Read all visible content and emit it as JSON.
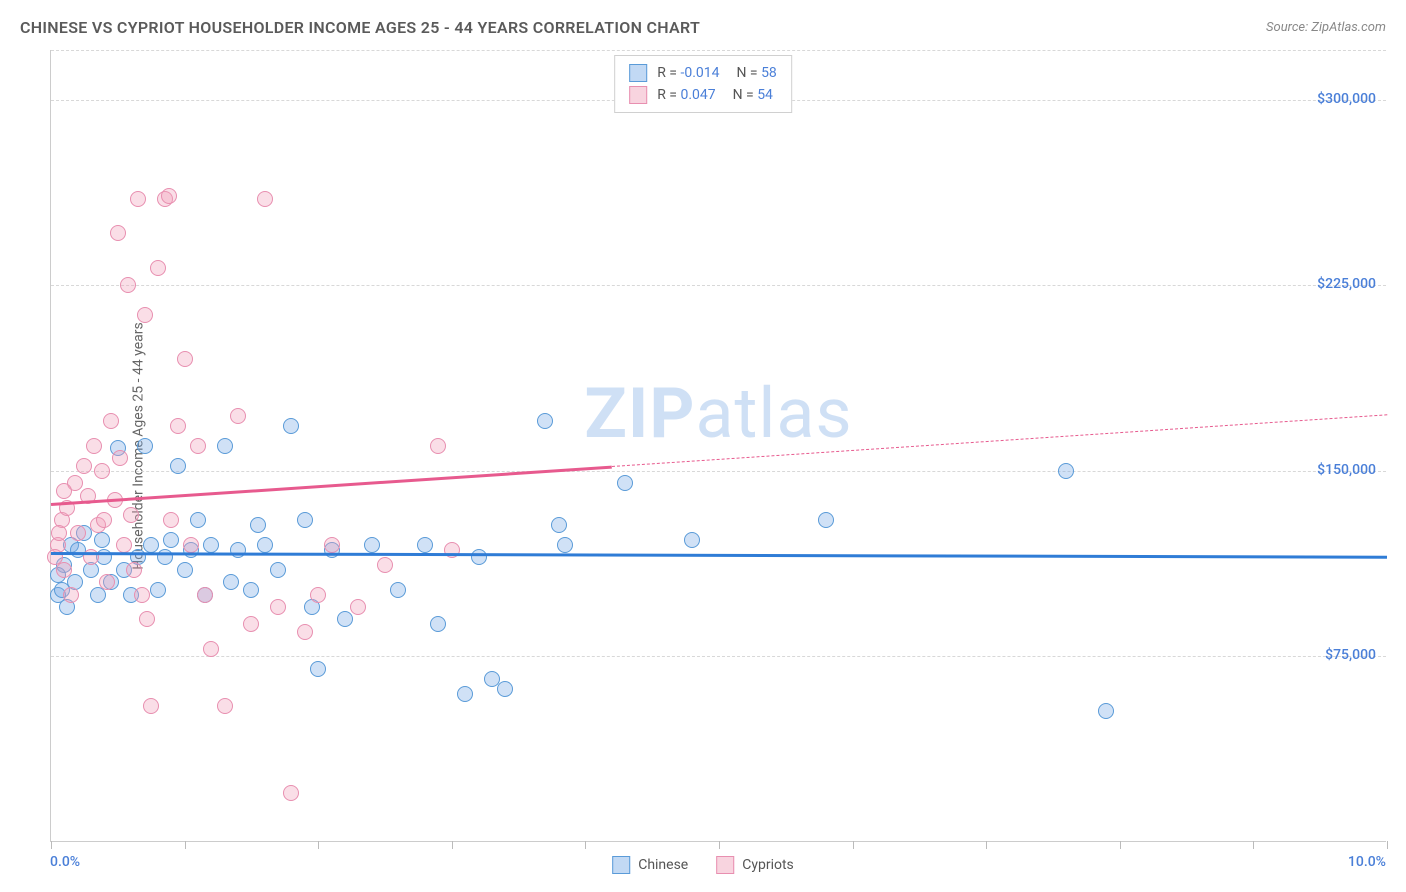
{
  "header": {
    "title": "CHINESE VS CYPRIOT HOUSEHOLDER INCOME AGES 25 - 44 YEARS CORRELATION CHART",
    "source": "Source: ZipAtlas.com"
  },
  "watermark": {
    "zip": "ZIP",
    "atlas": "atlas"
  },
  "chart": {
    "type": "scatter",
    "y_label": "Householder Income Ages 25 - 44 years",
    "x_min": 0.0,
    "x_max": 10.0,
    "y_min": 0,
    "y_max": 320000,
    "x_tick_left": "0.0%",
    "x_tick_right": "10.0%",
    "x_tick_positions_pct": [
      0,
      10,
      20,
      30,
      40,
      50,
      60,
      70,
      80,
      90,
      100
    ],
    "y_ticks": [
      {
        "v": 75000,
        "label": "$75,000"
      },
      {
        "v": 150000,
        "label": "$150,000"
      },
      {
        "v": 225000,
        "label": "$225,000"
      },
      {
        "v": 300000,
        "label": "$300,000"
      }
    ],
    "grid_color": "#d8d8d8",
    "background_color": "#ffffff",
    "marker_radius": 8,
    "marker_stroke_width": 1.5,
    "label_fontsize": 14,
    "label_color": "#4a7fd8"
  },
  "series": [
    {
      "name": "Chinese",
      "color_fill": "rgba(120,170,230,0.35)",
      "color_stroke": "#5a9bd8",
      "trend_color": "#2f7cd6",
      "trend": {
        "x1": 0.0,
        "y1": 117000,
        "x2": 10.0,
        "y2": 115500,
        "dash_from_pct": 100
      },
      "points": [
        [
          0.05,
          100000
        ],
        [
          0.1,
          112000
        ],
        [
          0.12,
          95000
        ],
        [
          0.15,
          120000
        ],
        [
          0.18,
          105000
        ],
        [
          0.2,
          118000
        ],
        [
          0.25,
          125000
        ],
        [
          0.3,
          110000
        ],
        [
          0.35,
          100000
        ],
        [
          0.38,
          122000
        ],
        [
          0.4,
          115000
        ],
        [
          0.45,
          105000
        ],
        [
          0.5,
          159000
        ],
        [
          0.55,
          110000
        ],
        [
          0.6,
          100000
        ],
        [
          0.65,
          115000
        ],
        [
          0.7,
          160000
        ],
        [
          0.75,
          120000
        ],
        [
          0.8,
          102000
        ],
        [
          0.85,
          115000
        ],
        [
          0.9,
          122000
        ],
        [
          0.95,
          152000
        ],
        [
          1.0,
          110000
        ],
        [
          1.05,
          118000
        ],
        [
          1.1,
          130000
        ],
        [
          1.15,
          100000
        ],
        [
          1.2,
          120000
        ],
        [
          1.3,
          160000
        ],
        [
          1.35,
          105000
        ],
        [
          1.4,
          118000
        ],
        [
          1.5,
          102000
        ],
        [
          1.55,
          128000
        ],
        [
          1.6,
          120000
        ],
        [
          1.7,
          110000
        ],
        [
          1.8,
          168000
        ],
        [
          1.9,
          130000
        ],
        [
          1.95,
          95000
        ],
        [
          2.0,
          70000
        ],
        [
          2.1,
          118000
        ],
        [
          2.2,
          90000
        ],
        [
          2.4,
          120000
        ],
        [
          2.6,
          102000
        ],
        [
          2.8,
          120000
        ],
        [
          2.9,
          88000
        ],
        [
          3.1,
          60000
        ],
        [
          3.2,
          115000
        ],
        [
          3.3,
          66000
        ],
        [
          3.4,
          62000
        ],
        [
          3.7,
          170000
        ],
        [
          3.8,
          128000
        ],
        [
          3.85,
          120000
        ],
        [
          4.3,
          145000
        ],
        [
          4.8,
          122000
        ],
        [
          5.8,
          130000
        ],
        [
          7.6,
          150000
        ],
        [
          7.9,
          53000
        ],
        [
          0.05,
          108000
        ],
        [
          0.08,
          102000
        ]
      ]
    },
    {
      "name": "Cypriots",
      "color_fill": "rgba(240,160,185,0.35)",
      "color_stroke": "#e88fb0",
      "trend_color": "#e75a8e",
      "trend": {
        "x1": 0.0,
        "y1": 137000,
        "x2": 10.0,
        "y2": 173000,
        "dash_from_pct": 42
      },
      "points": [
        [
          0.05,
          120000
        ],
        [
          0.08,
          130000
        ],
        [
          0.1,
          110000
        ],
        [
          0.12,
          135000
        ],
        [
          0.15,
          100000
        ],
        [
          0.18,
          145000
        ],
        [
          0.2,
          125000
        ],
        [
          0.25,
          152000
        ],
        [
          0.28,
          140000
        ],
        [
          0.3,
          115000
        ],
        [
          0.32,
          160000
        ],
        [
          0.35,
          128000
        ],
        [
          0.38,
          150000
        ],
        [
          0.4,
          130000
        ],
        [
          0.42,
          105000
        ],
        [
          0.45,
          170000
        ],
        [
          0.48,
          138000
        ],
        [
          0.5,
          246000
        ],
        [
          0.52,
          155000
        ],
        [
          0.55,
          120000
        ],
        [
          0.58,
          225000
        ],
        [
          0.6,
          132000
        ],
        [
          0.62,
          110000
        ],
        [
          0.65,
          260000
        ],
        [
          0.68,
          100000
        ],
        [
          0.7,
          213000
        ],
        [
          0.72,
          90000
        ],
        [
          0.75,
          55000
        ],
        [
          0.8,
          232000
        ],
        [
          0.85,
          260000
        ],
        [
          0.88,
          261000
        ],
        [
          0.9,
          130000
        ],
        [
          0.95,
          168000
        ],
        [
          1.0,
          195000
        ],
        [
          1.05,
          120000
        ],
        [
          1.1,
          160000
        ],
        [
          1.15,
          100000
        ],
        [
          1.2,
          78000
        ],
        [
          1.3,
          55000
        ],
        [
          1.4,
          172000
        ],
        [
          1.5,
          88000
        ],
        [
          1.6,
          260000
        ],
        [
          1.7,
          95000
        ],
        [
          1.8,
          20000
        ],
        [
          1.9,
          85000
        ],
        [
          2.0,
          100000
        ],
        [
          2.1,
          120000
        ],
        [
          2.3,
          95000
        ],
        [
          2.5,
          112000
        ],
        [
          2.9,
          160000
        ],
        [
          3.0,
          118000
        ],
        [
          0.03,
          115000
        ],
        [
          0.06,
          125000
        ],
        [
          0.1,
          142000
        ]
      ]
    }
  ],
  "legend_top": {
    "rows": [
      {
        "swatch_fill": "rgba(120,170,230,0.45)",
        "swatch_stroke": "#5a9bd8",
        "r_label": "R =",
        "r_val": "-0.014",
        "n_label": "N =",
        "n_val": "58"
      },
      {
        "swatch_fill": "rgba(240,160,185,0.45)",
        "swatch_stroke": "#e88fb0",
        "r_label": "R =",
        "r_val": "0.047",
        "n_label": "N =",
        "n_val": "54"
      }
    ]
  },
  "legend_bottom": {
    "items": [
      {
        "swatch_fill": "rgba(120,170,230,0.45)",
        "swatch_stroke": "#5a9bd8",
        "label": "Chinese"
      },
      {
        "swatch_fill": "rgba(240,160,185,0.45)",
        "swatch_stroke": "#e88fb0",
        "label": "Cypriots"
      }
    ]
  }
}
